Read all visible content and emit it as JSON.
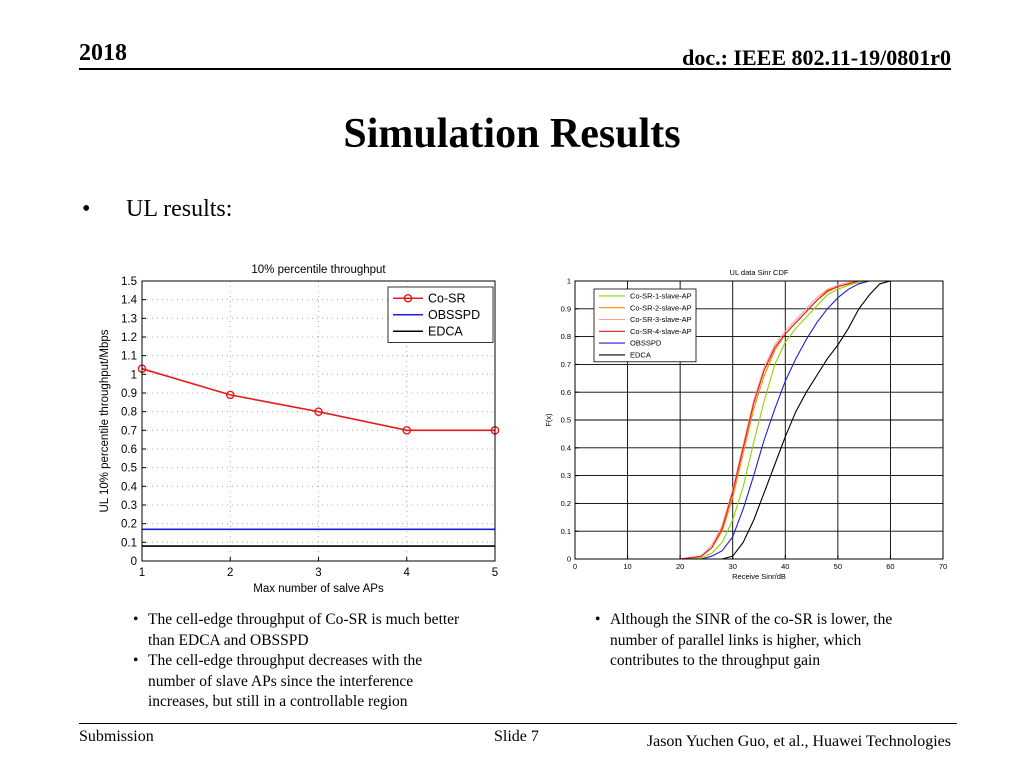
{
  "header": {
    "year": "2018",
    "doc": "doc.: IEEE 802.11-19/0801r0"
  },
  "title": "Simulation Results",
  "bullet": {
    "symbol": "•",
    "text": "UL results:"
  },
  "chart_data": [
    {
      "type": "line",
      "title": "10% percentile throughput",
      "xlabel": "Max number of salve APs",
      "ylabel": "UL 10% percentile throughput/Mbps",
      "xlim": [
        1,
        5
      ],
      "ylim": [
        0,
        1.5
      ],
      "xticks": [
        "1",
        "2",
        "3",
        "4",
        "5"
      ],
      "yticks": [
        "0",
        "0.1",
        "0.2",
        "0.3",
        "0.4",
        "0.5",
        "0.6",
        "0.7",
        "0.8",
        "0.9",
        "1",
        "1.1",
        "1.2",
        "1.3",
        "1.4",
        "1.5"
      ],
      "legend": "top-right",
      "grid": true,
      "series": [
        {
          "name": "Co-SR",
          "color": "#e41a1c",
          "marker": "circle",
          "x": [
            1,
            2,
            3,
            4,
            5
          ],
          "y": [
            1.03,
            0.89,
            0.8,
            0.7,
            0.7
          ]
        },
        {
          "name": "OBSSPD",
          "color": "#1f1fd6",
          "marker": "none",
          "x": [
            1,
            2,
            3,
            4,
            5
          ],
          "y": [
            0.17,
            0.17,
            0.17,
            0.17,
            0.17
          ]
        },
        {
          "name": "EDCA",
          "color": "#000000",
          "marker": "none",
          "x": [
            1,
            2,
            3,
            4,
            5
          ],
          "y": [
            0.08,
            0.08,
            0.08,
            0.08,
            0.08
          ]
        }
      ]
    },
    {
      "type": "line",
      "title": "UL data Sinr CDF",
      "xlabel": "Receive Sinr/dB",
      "ylabel": "F(x)",
      "xlim": [
        0,
        70
      ],
      "ylim": [
        0,
        1
      ],
      "xticks": [
        "0",
        "10",
        "20",
        "30",
        "40",
        "50",
        "60",
        "70"
      ],
      "yticks": [
        "0",
        "0.1",
        "0.2",
        "0.3",
        "0.4",
        "0.5",
        "0.6",
        "0.7",
        "0.8",
        "0.9",
        "1"
      ],
      "legend": "top-left",
      "grid": true,
      "series": [
        {
          "name": "Co-SR-1-slave-AP",
          "color": "#8fd400",
          "x": [
            16,
            20,
            24,
            26,
            28,
            30,
            32,
            34,
            36,
            38,
            40,
            42,
            44,
            46,
            48,
            50,
            52,
            54,
            56,
            58
          ],
          "y": [
            0,
            0,
            0.005,
            0.02,
            0.06,
            0.14,
            0.26,
            0.42,
            0.57,
            0.7,
            0.78,
            0.83,
            0.87,
            0.91,
            0.95,
            0.97,
            0.985,
            0.995,
            1,
            1
          ]
        },
        {
          "name": "Co-SR-2-slave-AP",
          "color": "#ff8c00",
          "x": [
            16,
            20,
            24,
            26,
            28,
            30,
            32,
            34,
            36,
            38,
            40,
            42,
            44,
            46,
            48,
            50,
            52,
            54,
            56
          ],
          "y": [
            0,
            0,
            0.01,
            0.04,
            0.1,
            0.22,
            0.38,
            0.54,
            0.66,
            0.75,
            0.81,
            0.85,
            0.89,
            0.93,
            0.96,
            0.98,
            0.99,
            1,
            1
          ]
        },
        {
          "name": "Co-SR-3-slave-AP",
          "color": "#ff9d9d",
          "x": [
            16,
            20,
            24,
            26,
            28,
            30,
            32,
            34,
            36,
            38,
            40,
            42,
            44,
            46,
            48,
            50,
            52,
            54,
            56
          ],
          "y": [
            0,
            0,
            0.01,
            0.05,
            0.12,
            0.25,
            0.41,
            0.57,
            0.69,
            0.77,
            0.82,
            0.86,
            0.9,
            0.94,
            0.97,
            0.985,
            0.995,
            1,
            1
          ]
        },
        {
          "name": "Co-SR-4-slave-AP",
          "color": "#e41a1c",
          "x": [
            16,
            20,
            24,
            26,
            28,
            30,
            32,
            34,
            36,
            38,
            40,
            42,
            44,
            46,
            48,
            50,
            52,
            54,
            56
          ],
          "y": [
            0,
            0,
            0.01,
            0.04,
            0.11,
            0.24,
            0.4,
            0.56,
            0.68,
            0.76,
            0.81,
            0.85,
            0.89,
            0.93,
            0.965,
            0.98,
            0.99,
            1,
            1
          ]
        },
        {
          "name": "OBSSPD",
          "color": "#1f1fd6",
          "x": [
            20,
            24,
            26,
            28,
            30,
            32,
            34,
            36,
            38,
            40,
            42,
            44,
            46,
            48,
            50,
            52,
            54,
            56,
            58
          ],
          "y": [
            0,
            0,
            0.01,
            0.03,
            0.08,
            0.18,
            0.3,
            0.43,
            0.54,
            0.64,
            0.72,
            0.79,
            0.85,
            0.9,
            0.94,
            0.97,
            0.99,
            1,
            1
          ]
        },
        {
          "name": "EDCA",
          "color": "#000000",
          "x": [
            24,
            28,
            30,
            32,
            34,
            36,
            38,
            40,
            42,
            44,
            46,
            48,
            50,
            52,
            54,
            56,
            58,
            60
          ],
          "y": [
            0,
            0,
            0.01,
            0.06,
            0.14,
            0.24,
            0.34,
            0.44,
            0.53,
            0.6,
            0.66,
            0.72,
            0.77,
            0.83,
            0.9,
            0.95,
            0.99,
            1
          ]
        }
      ]
    }
  ],
  "notes_left": [
    "The cell-edge throughput of Co-SR is much better than EDCA and OBSSPD",
    "The cell-edge throughput decreases with the number of slave APs since the interference increases, but still in a controllable region"
  ],
  "notes_right": [
    "Although the SINR of the co-SR is lower, the number of parallel links is higher, which contributes to the throughput gain"
  ],
  "footer": {
    "left": "Submission",
    "mid": "Slide 7",
    "right": "Jason Yuchen Guo, et al., Huawei Technologies"
  }
}
